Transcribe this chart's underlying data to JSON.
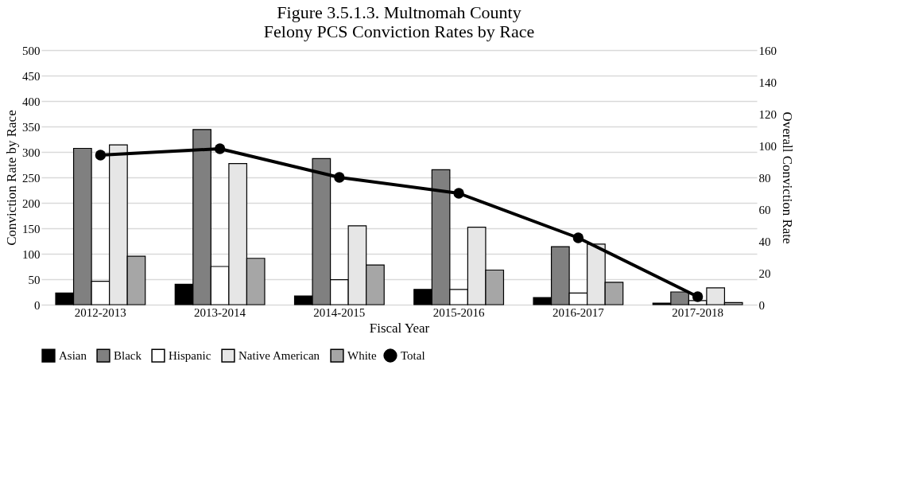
{
  "chart_data": {
    "type": "bar",
    "title": [
      "Figure 3.5.1.3. Multnomah County",
      "Felony PCS Conviction Rates by Race"
    ],
    "xlabel": "Fiscal Year",
    "ylabel": "Conviction Rate by Race",
    "y2label": "Overall Conviction Rate",
    "categories": [
      "2012-2013",
      "2013-2014",
      "2014-2015",
      "2015-2016",
      "2016-2017",
      "2017-2018"
    ],
    "series": [
      {
        "name": "Asian",
        "color": "#000000",
        "values": [
          23,
          40,
          17,
          30,
          14,
          3
        ]
      },
      {
        "name": "Black",
        "color": "#808080",
        "values": [
          307,
          344,
          287,
          265,
          114,
          25
        ]
      },
      {
        "name": "Hispanic",
        "color": "#ffffff",
        "values": [
          46,
          75,
          49,
          30,
          23,
          8
        ]
      },
      {
        "name": "Native American",
        "color": "#e6e6e6",
        "values": [
          314,
          277,
          155,
          152,
          119,
          33
        ]
      },
      {
        "name": "White",
        "color": "#a6a6a6",
        "values": [
          95,
          91,
          78,
          68,
          44,
          4
        ]
      },
      {
        "name": "Total",
        "type": "line",
        "axis": "y2",
        "color": "#000000",
        "values": [
          94,
          98,
          80,
          70,
          42,
          5
        ]
      }
    ],
    "ylim": [
      0,
      500
    ],
    "yticks": [
      0,
      50,
      100,
      150,
      200,
      250,
      300,
      350,
      400,
      450,
      500
    ],
    "y2lim": [
      0,
      160
    ],
    "y2ticks": [
      0,
      20,
      40,
      60,
      80,
      100,
      120,
      140,
      160
    ],
    "grid": "y",
    "legend": "bottom",
    "marker": "circle",
    "line_style": "solid"
  }
}
